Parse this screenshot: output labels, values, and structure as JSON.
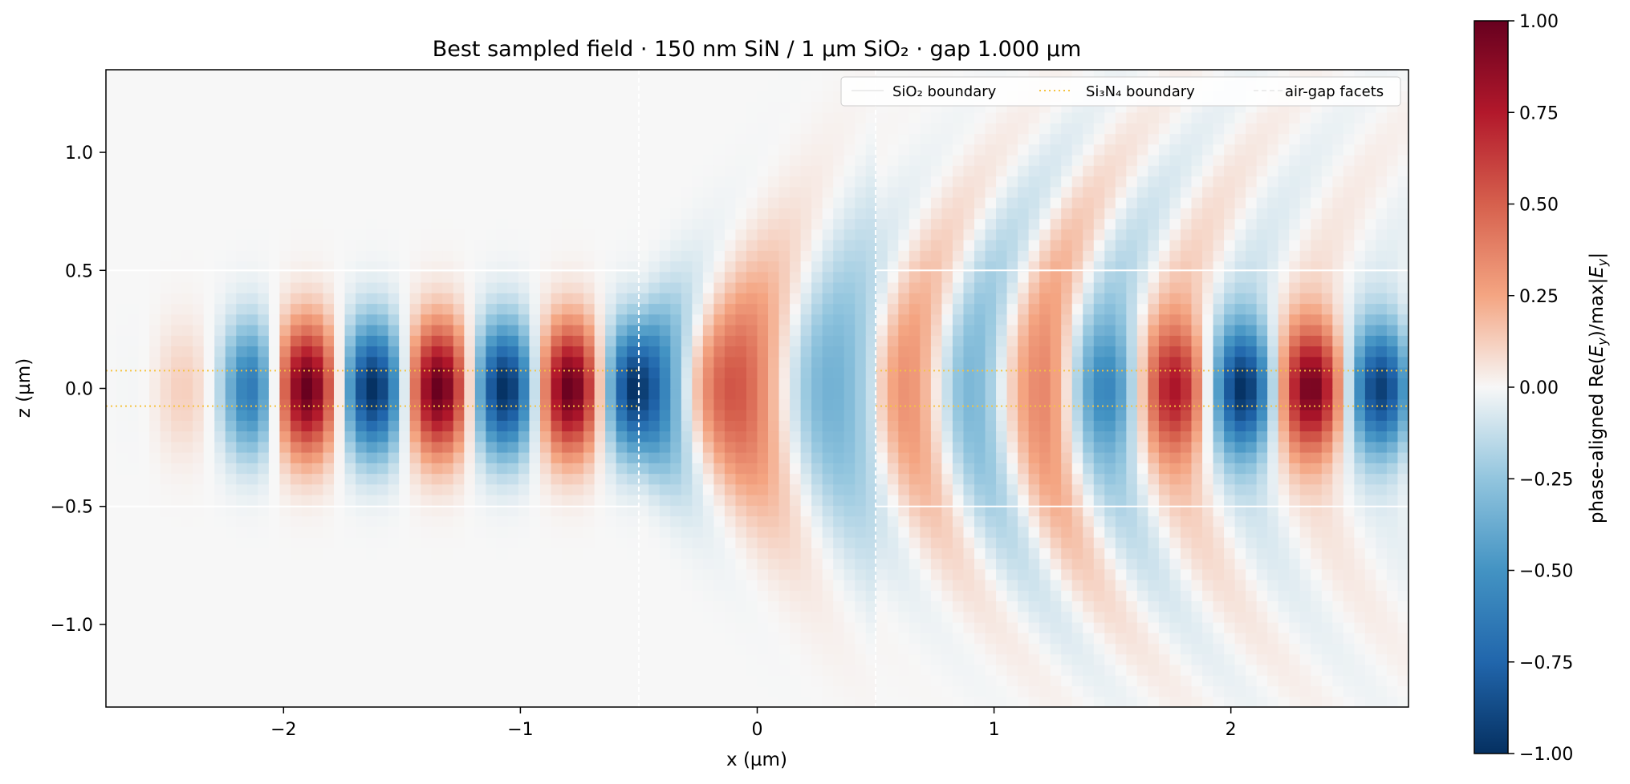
{
  "chart_data": {
    "type": "heatmap",
    "title": "Best sampled field · 150 nm SiN / 1 µm SiO₂ · gap 1.000 µm",
    "xlabel": "x (µm)",
    "ylabel": "z (µm)",
    "xlim": [
      -2.75,
      2.75
    ],
    "ylim": [
      -1.35,
      1.35
    ],
    "x_ticks": [
      -2,
      -1,
      0,
      1,
      2
    ],
    "x_tick_labels": [
      "−2",
      "−1",
      "0",
      "1",
      "2"
    ],
    "y_ticks": [
      -1.0,
      -0.5,
      0.0,
      0.5,
      1.0
    ],
    "y_tick_labels": [
      "−1.0",
      "−0.5",
      "0.0",
      "0.5",
      "1.0"
    ],
    "colormap": "RdBu_r",
    "colorbar": {
      "label_prefix": "phase-aligned Re(",
      "label_e1": "E",
      "label_sub1": "y",
      "label_mid": ")/max|",
      "label_e2": "E",
      "label_sub2": "y",
      "label_suffix": "|",
      "range": [
        -1.0,
        1.0
      ],
      "ticks": [
        1.0,
        0.75,
        0.5,
        0.25,
        0.0,
        -0.25,
        -0.5,
        -0.75,
        -1.0
      ],
      "tick_labels": [
        "1.00",
        "0.75",
        "0.50",
        "0.25",
        "0.00",
        "−0.25",
        "−0.50",
        "−0.75",
        "−1.00"
      ]
    },
    "overlays": {
      "sio2_boundary_z": [
        0.5,
        -0.5
      ],
      "si3n4_boundary_z": [
        0.075,
        -0.075
      ],
      "air_gap_facets_x": [
        -0.5,
        0.5
      ]
    },
    "legend": {
      "placement": "top-right",
      "entries": [
        {
          "label": "SiO₂ boundary",
          "color": "#ffffff",
          "style": "solid"
        },
        {
          "label": "Si₃N₄ boundary",
          "color": "#f5c342",
          "style": "dotted"
        },
        {
          "label": "air-gap facets",
          "color": "#ffffff",
          "style": "dashed"
        }
      ]
    },
    "field_model": {
      "description_values": {
        "left_guide_peak_x": [
          -1.9,
          -1.62,
          -1.34,
          -1.07,
          -0.79,
          -0.52
        ],
        "left_guide_peak_sign": [
          1,
          -1,
          1,
          -1,
          1,
          -1
        ],
        "gap_lobe_x": [
          -0.08,
          0.33
        ],
        "gap_lobe_sign": [
          1,
          -1
        ],
        "right_guide_peak_x": [
          1.47,
          1.76,
          2.06,
          2.34,
          2.63
        ],
        "right_guide_peak_sign": [
          -1,
          1,
          -1,
          1,
          -1
        ]
      }
    }
  }
}
